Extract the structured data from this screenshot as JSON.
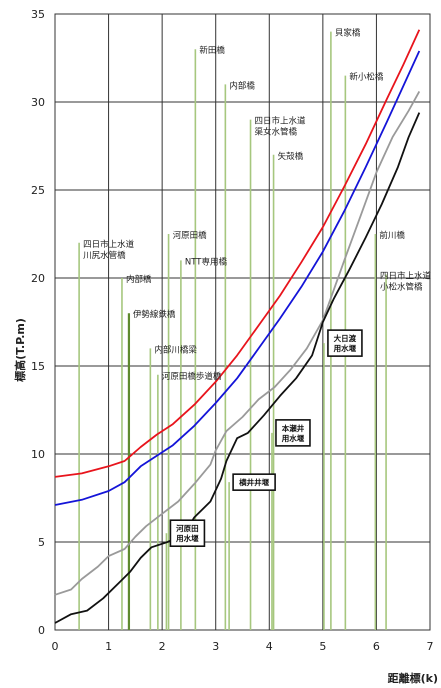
{
  "chart_data": {
    "type": "line",
    "xlabel": "距離標(k)",
    "ylabel": "標高(T.P.m)",
    "xlim": [
      0,
      7
    ],
    "ylim": [
      0,
      35
    ],
    "xticks": [
      "0",
      "1",
      "2",
      "3",
      "4",
      "5",
      "6",
      "7"
    ],
    "yticks": [
      "0",
      "5",
      "10",
      "15",
      "20",
      "25",
      "30",
      "35"
    ],
    "grid": true,
    "colors": {
      "red": "#e8141c",
      "blue": "#1414d8",
      "gray": "#9a9a9a",
      "black": "#111111",
      "structure": "#a6c77e",
      "structure_dark": "#5f8a2e",
      "grid": "#333333"
    },
    "series": [
      {
        "color": "red",
        "points": [
          [
            0,
            8.7
          ],
          [
            0.5,
            8.9
          ],
          [
            1.0,
            9.3
          ],
          [
            1.3,
            9.6
          ],
          [
            1.6,
            10.4
          ],
          [
            1.9,
            11.1
          ],
          [
            2.2,
            11.7
          ],
          [
            2.6,
            12.8
          ],
          [
            3.0,
            14.1
          ],
          [
            3.4,
            15.6
          ],
          [
            3.8,
            17.3
          ],
          [
            4.2,
            19.0
          ],
          [
            4.6,
            20.9
          ],
          [
            5.0,
            22.9
          ],
          [
            5.4,
            25.2
          ],
          [
            5.8,
            27.6
          ],
          [
            6.2,
            30.2
          ],
          [
            6.5,
            32.1
          ],
          [
            6.8,
            34.1
          ]
        ]
      },
      {
        "color": "blue",
        "points": [
          [
            0,
            7.1
          ],
          [
            0.5,
            7.4
          ],
          [
            1.0,
            7.9
          ],
          [
            1.3,
            8.4
          ],
          [
            1.6,
            9.3
          ],
          [
            1.9,
            9.9
          ],
          [
            2.2,
            10.5
          ],
          [
            2.6,
            11.6
          ],
          [
            3.0,
            12.9
          ],
          [
            3.4,
            14.3
          ],
          [
            3.8,
            16.0
          ],
          [
            4.2,
            17.7
          ],
          [
            4.6,
            19.5
          ],
          [
            5.0,
            21.5
          ],
          [
            5.4,
            23.8
          ],
          [
            5.8,
            26.3
          ],
          [
            6.2,
            28.9
          ],
          [
            6.5,
            30.9
          ],
          [
            6.8,
            32.9
          ]
        ]
      },
      {
        "color": "gray",
        "points": [
          [
            0,
            2.0
          ],
          [
            0.3,
            2.3
          ],
          [
            0.5,
            2.9
          ],
          [
            0.8,
            3.6
          ],
          [
            1.0,
            4.2
          ],
          [
            1.3,
            4.6
          ],
          [
            1.5,
            5.3
          ],
          [
            1.7,
            5.9
          ],
          [
            2.0,
            6.6
          ],
          [
            2.3,
            7.3
          ],
          [
            2.6,
            8.3
          ],
          [
            2.9,
            9.4
          ],
          [
            3.0,
            10.2
          ],
          [
            3.2,
            11.3
          ],
          [
            3.5,
            12.1
          ],
          [
            3.8,
            13.1
          ],
          [
            4.1,
            13.8
          ],
          [
            4.4,
            14.8
          ],
          [
            4.7,
            16.0
          ],
          [
            5.0,
            17.6
          ],
          [
            5.2,
            19.3
          ],
          [
            5.4,
            21.0
          ],
          [
            5.7,
            23.5
          ],
          [
            6.0,
            26.0
          ],
          [
            6.3,
            28.0
          ],
          [
            6.6,
            29.5
          ],
          [
            6.8,
            30.6
          ]
        ]
      },
      {
        "color": "black",
        "points": [
          [
            0,
            0.4
          ],
          [
            0.3,
            0.9
          ],
          [
            0.6,
            1.1
          ],
          [
            0.9,
            1.8
          ],
          [
            1.2,
            2.7
          ],
          [
            1.4,
            3.3
          ],
          [
            1.6,
            4.1
          ],
          [
            1.8,
            4.7
          ],
          [
            2.1,
            5.0
          ],
          [
            2.4,
            5.4
          ],
          [
            2.6,
            6.4
          ],
          [
            2.9,
            7.3
          ],
          [
            3.1,
            8.6
          ],
          [
            3.2,
            9.6
          ],
          [
            3.4,
            10.9
          ],
          [
            3.6,
            11.2
          ],
          [
            3.9,
            12.2
          ],
          [
            4.2,
            13.3
          ],
          [
            4.5,
            14.3
          ],
          [
            4.8,
            15.6
          ],
          [
            5.0,
            17.5
          ],
          [
            5.2,
            18.8
          ],
          [
            5.5,
            20.5
          ],
          [
            5.8,
            22.3
          ],
          [
            6.1,
            24.2
          ],
          [
            6.4,
            26.3
          ],
          [
            6.6,
            28.0
          ],
          [
            6.8,
            29.4
          ]
        ]
      }
    ],
    "structures": [
      {
        "label": "四日市上水道川尻水管橋",
        "x": 0.45,
        "top": 22.0,
        "dark": false,
        "boxed": false
      },
      {
        "label": "内部橋",
        "x": 1.25,
        "top": 20.0,
        "dark": false,
        "boxed": false
      },
      {
        "label": "伊勢線鉄橋",
        "x": 1.38,
        "top": 18.0,
        "dark": true,
        "boxed": false
      },
      {
        "label": "内部川橋梁",
        "x": 1.78,
        "top": 16.0,
        "dark": false,
        "boxed": false
      },
      {
        "label": "河原田橋歩道橋",
        "x": 1.92,
        "top": 14.5,
        "dark": false,
        "boxed": false
      },
      {
        "label": "河原田橋",
        "x": 2.12,
        "top": 22.5,
        "dark": false,
        "boxed": false
      },
      {
        "label": "NTT専用橋",
        "x": 2.35,
        "top": 21.0,
        "dark": false,
        "boxed": false
      },
      {
        "label": "新田橋",
        "x": 2.62,
        "top": 33.0,
        "dark": false,
        "boxed": false
      },
      {
        "label": "内部橋",
        "x": 3.18,
        "top": 31.0,
        "dark": false,
        "boxed": false
      },
      {
        "label": "四日市上水道渠女水管橋",
        "x": 3.65,
        "top": 29.0,
        "dark": false,
        "boxed": false
      },
      {
        "label": "矢殻橋",
        "x": 4.08,
        "top": 27.0,
        "dark": false,
        "boxed": false
      },
      {
        "label": "貝家橋",
        "x": 5.15,
        "top": 34.0,
        "dark": false,
        "boxed": false
      },
      {
        "label": "新小松橋",
        "x": 5.42,
        "top": 31.5,
        "dark": false,
        "boxed": false
      },
      {
        "label": "前川橋",
        "x": 5.98,
        "top": 22.5,
        "dark": false,
        "boxed": false
      },
      {
        "label": "四日市上水道小松水管橋",
        "x": 6.18,
        "top": 20.2,
        "dark": false,
        "boxed": false
      },
      {
        "label": "河原田用水堰",
        "x": 2.08,
        "top": 5.5,
        "dark": false,
        "boxed": true
      },
      {
        "label": "横井井堰",
        "x": 3.25,
        "top": 8.4,
        "dark": false,
        "boxed": true
      },
      {
        "label": "本瀬井用水堰",
        "x": 4.05,
        "top": 11.2,
        "dark": false,
        "boxed": true
      },
      {
        "label": "大日渡用水堰",
        "x": 5.02,
        "top": 16.3,
        "dark": false,
        "boxed": true
      }
    ]
  }
}
